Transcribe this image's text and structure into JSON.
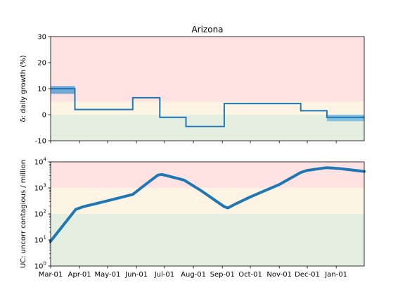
{
  "chart_data": [
    {
      "type": "line",
      "title": "Arizona",
      "ylabel": "δ: daily growth (%)",
      "xlabel": "",
      "ylim": [
        -10,
        30
      ],
      "y_ticks": [
        -10,
        0,
        10,
        20,
        30
      ],
      "x_ticks": [],
      "grid": false,
      "legend": "none",
      "zones": [
        {
          "from": 5,
          "to": 30,
          "color": "#ffe2e2"
        },
        {
          "from": 0,
          "to": 5,
          "color": "#fdf4e3"
        },
        {
          "from": -10,
          "to": 0,
          "color": "#e4efe1"
        }
      ],
      "series": [
        {
          "style": "step",
          "color": "#1f77b4",
          "steps": [
            {
              "from": "2020-03-01",
              "to": "2020-03-27",
              "value": 10
            },
            {
              "from": "2020-03-27",
              "to": "2020-05-28",
              "value": 2
            },
            {
              "from": "2020-05-28",
              "to": "2020-06-26",
              "value": 6.5
            },
            {
              "from": "2020-06-26",
              "to": "2020-07-24",
              "value": -1
            },
            {
              "from": "2020-07-24",
              "to": "2020-09-03",
              "value": -4.5
            },
            {
              "from": "2020-09-03",
              "to": "2020-11-24",
              "value": 4.3
            },
            {
              "from": "2020-11-24",
              "to": "2020-12-22",
              "value": 1.5
            },
            {
              "from": "2020-12-22",
              "to": "2021-01-31",
              "value": -1
            }
          ],
          "uncertainty_bands": [
            {
              "from": "2020-03-01",
              "to": "2020-03-27",
              "low": 8,
              "high": 11,
              "color": "#5a9fd4"
            },
            {
              "from": "2020-12-22",
              "to": "2021-01-31",
              "low": -2.5,
              "high": 0,
              "color": "#74b9e0"
            }
          ]
        }
      ]
    },
    {
      "type": "line",
      "title": "",
      "ylabel": "UC: uncorr contagious / million",
      "xlabel": "",
      "scale": "log",
      "ylim": [
        1,
        10000
      ],
      "y_ticks": [
        1,
        10,
        100,
        1000,
        10000
      ],
      "categories": [
        "Mar-01",
        "Apr-01",
        "May-01",
        "Jun-01",
        "Jul-01",
        "Aug-01",
        "Sep-01",
        "Oct-01",
        "Nov-01",
        "Dec-01",
        "Jan-01"
      ],
      "tick_dates": [
        "2020-03-01",
        "2020-04-01",
        "2020-05-01",
        "2020-06-01",
        "2020-07-01",
        "2020-08-01",
        "2020-09-01",
        "2020-10-01",
        "2020-11-01",
        "2020-12-01",
        "2021-01-01"
      ],
      "xlim": [
        "2020-03-01",
        "2021-01-31"
      ],
      "grid": false,
      "legend": "none",
      "zones": [
        {
          "from": 1000,
          "to": 10000,
          "color": "#ffe2e2"
        },
        {
          "from": 100,
          "to": 1000,
          "color": "#fdf4e3"
        },
        {
          "from": 1,
          "to": 100,
          "color": "#e4efe1"
        }
      ],
      "series": [
        {
          "color": "#1f77b4",
          "points": [
            {
              "x": "2020-03-01",
              "y": 9
            },
            {
              "x": "2020-03-28",
              "y": 150
            },
            {
              "x": "2020-04-05",
              "y": 190
            },
            {
              "x": "2020-05-01",
              "y": 320
            },
            {
              "x": "2020-05-28",
              "y": 560
            },
            {
              "x": "2020-06-10",
              "y": 1300
            },
            {
              "x": "2020-06-24",
              "y": 3100
            },
            {
              "x": "2020-06-28",
              "y": 3300
            },
            {
              "x": "2020-07-06",
              "y": 2800
            },
            {
              "x": "2020-07-22",
              "y": 2000
            },
            {
              "x": "2020-08-10",
              "y": 750
            },
            {
              "x": "2020-09-03",
              "y": 190
            },
            {
              "x": "2020-09-07",
              "y": 170
            },
            {
              "x": "2020-09-15",
              "y": 240
            },
            {
              "x": "2020-10-01",
              "y": 450
            },
            {
              "x": "2020-11-01",
              "y": 1350
            },
            {
              "x": "2020-11-24",
              "y": 3900
            },
            {
              "x": "2020-12-01",
              "y": 4700
            },
            {
              "x": "2020-12-22",
              "y": 6000
            },
            {
              "x": "2021-01-05",
              "y": 5500
            },
            {
              "x": "2021-01-31",
              "y": 4300
            }
          ]
        }
      ]
    }
  ]
}
